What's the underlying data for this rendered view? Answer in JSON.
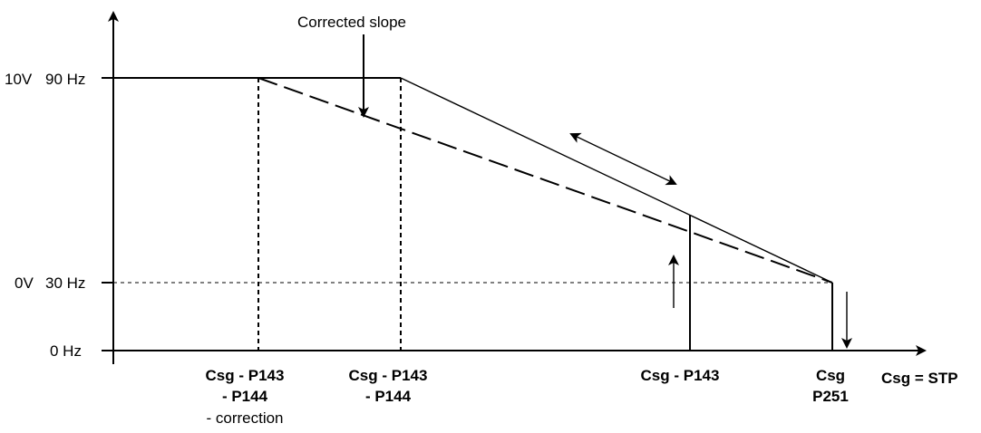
{
  "y_labels": {
    "v10": "10V",
    "hz90": "90 Hz",
    "v0": "0V",
    "hz30": "30 Hz",
    "hz0": "0 Hz"
  },
  "x_labels": {
    "corrected_point": [
      "Csg - P143",
      "- P144",
      "- correction"
    ],
    "ramp_start": [
      "Csg - P143",
      "- P144"
    ],
    "setpoint_minus_p143": [
      "Csg - P143"
    ],
    "setpoint_p251": [
      "Csg",
      "P251"
    ],
    "axis": "Csg = STP"
  },
  "annotation": "Corrected slope"
}
